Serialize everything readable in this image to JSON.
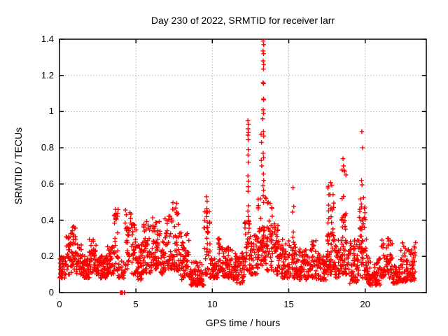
{
  "chart_data": {
    "type": "scatter",
    "title": "Day 230 of 2022, SRMTID for receiver larr",
    "xlabel": "GPS time / hours",
    "ylabel": "SRMTID / TECUs",
    "xlim": [
      0,
      24
    ],
    "ylim": [
      0,
      1.4
    ],
    "xticks": [
      0,
      5,
      10,
      15,
      20
    ],
    "yticks": [
      0,
      0.2,
      0.4,
      0.6,
      0.8,
      1,
      1.2,
      1.4
    ],
    "grid": "dotted",
    "legend": "none",
    "marker": {
      "shape": "plus",
      "color": "#ff0000"
    },
    "axis_color": "#000000",
    "grid_color": "#b0b0b0",
    "background_color": "#ffffff",
    "band_envelope": [
      [
        0.0,
        0.4,
        0.08,
        0.2,
        36
      ],
      [
        0.4,
        0.7,
        0.1,
        0.31,
        28
      ],
      [
        0.7,
        1.1,
        0.11,
        0.37,
        40
      ],
      [
        1.1,
        1.45,
        0.1,
        0.27,
        32
      ],
      [
        1.45,
        1.95,
        0.08,
        0.21,
        45
      ],
      [
        1.95,
        2.45,
        0.1,
        0.3,
        45
      ],
      [
        2.45,
        3.1,
        0.08,
        0.21,
        58
      ],
      [
        3.1,
        3.55,
        0.1,
        0.26,
        40
      ],
      [
        3.55,
        3.85,
        0.12,
        0.46,
        28
      ],
      [
        3.85,
        4.3,
        0.08,
        0.18,
        22
      ],
      [
        4.3,
        4.7,
        0.12,
        0.47,
        34
      ],
      [
        4.7,
        5.05,
        0.1,
        0.38,
        32
      ],
      [
        5.05,
        5.5,
        0.07,
        0.3,
        40
      ],
      [
        5.5,
        6.0,
        0.1,
        0.4,
        45
      ],
      [
        6.0,
        6.6,
        0.13,
        0.42,
        55
      ],
      [
        6.6,
        6.9,
        0.1,
        0.3,
        27
      ],
      [
        6.9,
        7.4,
        0.12,
        0.43,
        46
      ],
      [
        7.4,
        7.9,
        0.12,
        0.5,
        45
      ],
      [
        7.9,
        8.55,
        0.07,
        0.33,
        55
      ],
      [
        8.55,
        9.45,
        0.04,
        0.17,
        70
      ],
      [
        9.45,
        9.85,
        0.1,
        0.45,
        26
      ],
      [
        9.85,
        10.35,
        0.08,
        0.2,
        42
      ],
      [
        10.35,
        10.65,
        0.12,
        0.3,
        26
      ],
      [
        10.65,
        11.35,
        0.08,
        0.25,
        60
      ],
      [
        11.35,
        12.1,
        0.05,
        0.23,
        64
      ],
      [
        12.1,
        12.5,
        0.12,
        0.4,
        38
      ],
      [
        12.5,
        13.0,
        0.1,
        0.33,
        45
      ],
      [
        13.0,
        13.55,
        0.15,
        0.55,
        55
      ],
      [
        13.55,
        14.0,
        0.12,
        0.5,
        42
      ],
      [
        14.0,
        14.45,
        0.1,
        0.42,
        40
      ],
      [
        14.45,
        15.1,
        0.08,
        0.3,
        55
      ],
      [
        15.1,
        15.55,
        0.08,
        0.28,
        36
      ],
      [
        15.55,
        16.2,
        0.07,
        0.25,
        56
      ],
      [
        16.2,
        16.8,
        0.08,
        0.3,
        52
      ],
      [
        16.8,
        17.5,
        0.07,
        0.22,
        60
      ],
      [
        17.5,
        18.0,
        0.1,
        0.32,
        42
      ],
      [
        17.55,
        17.95,
        0.3,
        0.62,
        24
      ],
      [
        18.0,
        18.4,
        0.08,
        0.3,
        34
      ],
      [
        18.4,
        18.8,
        0.1,
        0.32,
        34
      ],
      [
        18.45,
        18.75,
        0.35,
        0.68,
        20
      ],
      [
        18.8,
        19.5,
        0.05,
        0.3,
        60
      ],
      [
        19.5,
        20.1,
        0.08,
        0.35,
        48
      ],
      [
        19.6,
        20.0,
        0.35,
        0.57,
        22
      ],
      [
        20.1,
        21.0,
        0.04,
        0.2,
        75
      ],
      [
        21.0,
        21.8,
        0.08,
        0.3,
        62
      ],
      [
        21.8,
        22.3,
        0.05,
        0.15,
        40
      ],
      [
        22.3,
        23.3,
        0.06,
        0.28,
        85
      ]
    ],
    "peak_points": [
      [
        3.67,
        0.46
      ],
      [
        3.7,
        0.435
      ],
      [
        3.68,
        0.41
      ],
      [
        9.62,
        0.53
      ],
      [
        9.66,
        0.505
      ],
      [
        9.64,
        0.465
      ],
      [
        9.68,
        0.445
      ],
      [
        9.63,
        0.42
      ],
      [
        9.67,
        0.39
      ],
      [
        9.65,
        0.36
      ],
      [
        9.69,
        0.33
      ],
      [
        9.64,
        0.3
      ],
      [
        9.68,
        0.27
      ],
      [
        9.66,
        0.24
      ],
      [
        9.63,
        0.21
      ],
      [
        12.33,
        0.95
      ],
      [
        12.36,
        0.93
      ],
      [
        12.34,
        0.905
      ],
      [
        12.36,
        0.885
      ],
      [
        12.33,
        0.87
      ],
      [
        12.35,
        0.845
      ],
      [
        12.37,
        0.79
      ],
      [
        12.34,
        0.76
      ],
      [
        12.36,
        0.72
      ],
      [
        12.33,
        0.645
      ],
      [
        12.37,
        0.615
      ],
      [
        12.35,
        0.585
      ],
      [
        12.34,
        0.56
      ],
      [
        12.37,
        0.48
      ],
      [
        12.33,
        0.45
      ],
      [
        12.36,
        0.42
      ],
      [
        13.33,
        1.39
      ],
      [
        13.36,
        1.37
      ],
      [
        13.32,
        1.335
      ],
      [
        13.35,
        1.32
      ],
      [
        13.33,
        1.28
      ],
      [
        13.36,
        1.26
      ],
      [
        13.34,
        1.235
      ],
      [
        13.32,
        1.16
      ],
      [
        13.35,
        1.155
      ],
      [
        13.34,
        1.07
      ],
      [
        13.36,
        1.065
      ],
      [
        13.33,
        1.01
      ],
      [
        13.35,
        0.99
      ],
      [
        13.3,
        0.96
      ],
      [
        13.34,
        0.89
      ],
      [
        13.36,
        0.865
      ],
      [
        13.19,
        0.875
      ],
      [
        13.22,
        0.83
      ],
      [
        13.33,
        0.77
      ],
      [
        13.35,
        0.745
      ],
      [
        13.2,
        0.73
      ],
      [
        13.23,
        0.7
      ],
      [
        13.34,
        0.655
      ],
      [
        13.36,
        0.62
      ],
      [
        13.32,
        0.59
      ],
      [
        13.35,
        0.565
      ],
      [
        13.33,
        0.535
      ],
      [
        15.28,
        0.58
      ],
      [
        15.33,
        0.475
      ],
      [
        15.25,
        0.445
      ],
      [
        15.3,
        0.335
      ],
      [
        15.27,
        0.305
      ],
      [
        18.55,
        0.74
      ],
      [
        18.58,
        0.7
      ],
      [
        19.78,
        0.89
      ],
      [
        19.83,
        0.8
      ],
      [
        19.76,
        0.62
      ],
      [
        19.8,
        0.595
      ],
      [
        21.48,
        0.3
      ],
      [
        21.55,
        0.285
      ]
    ],
    "zero_points": [
      [
        3.99,
        0
      ],
      [
        4.02,
        0
      ],
      [
        4.08,
        0
      ],
      [
        4.1,
        0
      ],
      [
        4.12,
        0
      ],
      [
        4.24,
        0
      ],
      [
        4.27,
        0
      ]
    ]
  }
}
